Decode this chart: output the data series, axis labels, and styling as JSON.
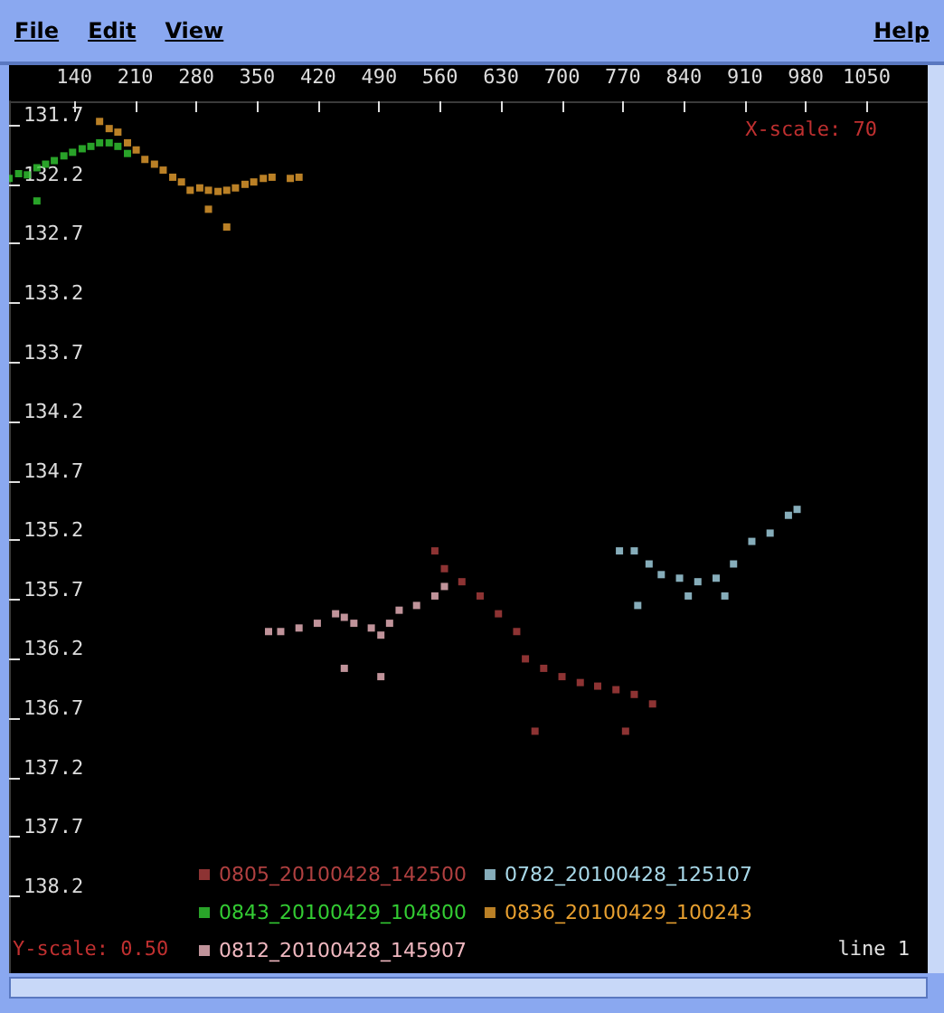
{
  "chart_data": {
    "type": "scatter",
    "annotations": [
      "File",
      "Edit",
      "View",
      "Help",
      "X-scale: 70",
      "Y-scale: 0.50",
      "line 1"
    ],
    "xlim": [
      65,
      1120
    ],
    "xticks": [
      140,
      210,
      280,
      350,
      420,
      490,
      560,
      630,
      700,
      770,
      840,
      910,
      980,
      1050
    ],
    "ylim": [
      138.85,
      131.5
    ],
    "yticks": [
      131.7,
      132.2,
      132.7,
      133.2,
      133.7,
      134.2,
      134.7,
      135.2,
      135.7,
      136.2,
      136.7,
      137.2,
      137.7,
      138.2
    ],
    "marker": "square",
    "grid": false,
    "legend": "bottom",
    "series": [
      {
        "name": "0805_20100428_142500",
        "color": "#b04040",
        "x": [
          554,
          565,
          585,
          606,
          627,
          648,
          658,
          679,
          700,
          721,
          741,
          762,
          783,
          804,
          669,
          773
        ],
        "values": [
          135.29,
          135.44,
          135.55,
          135.67,
          135.82,
          135.97,
          136.2,
          136.28,
          136.35,
          136.4,
          136.43,
          136.46,
          136.5,
          136.58,
          136.81,
          136.81
        ]
      },
      {
        "name": "0782_20100428_125107",
        "color": "#a8d8e8",
        "x": [
          766,
          783,
          800,
          814,
          835,
          856,
          877,
          897,
          918,
          939,
          960,
          970,
          787,
          845,
          887
        ],
        "values": [
          135.29,
          135.29,
          135.4,
          135.49,
          135.52,
          135.55,
          135.52,
          135.4,
          135.21,
          135.14,
          134.99,
          134.94,
          135.75,
          135.67,
          135.67
        ]
      },
      {
        "name": "0843_20100429_104800",
        "color": "#33cc33",
        "x": [
          65,
          76,
          86,
          97,
          107,
          117,
          128,
          138,
          149,
          159,
          169,
          180,
          190,
          201,
          97
        ],
        "values": [
          132.15,
          132.11,
          132.12,
          132.06,
          132.03,
          132.0,
          131.96,
          131.93,
          131.9,
          131.88,
          131.85,
          131.85,
          131.88,
          131.94,
          132.34
        ]
      },
      {
        "name": "0836_20100429_100243",
        "color": "#e8a030",
        "x": [
          169,
          180,
          190,
          201,
          211,
          221,
          232,
          242,
          253,
          263,
          273,
          284,
          294,
          305,
          315,
          325,
          336,
          346,
          357,
          367,
          388,
          398,
          294,
          315
        ],
        "values": [
          131.67,
          131.73,
          131.76,
          131.85,
          131.91,
          131.99,
          132.03,
          132.08,
          132.14,
          132.18,
          132.25,
          132.23,
          132.25,
          132.26,
          132.25,
          132.23,
          132.2,
          132.18,
          132.15,
          132.14,
          132.15,
          132.14,
          132.41,
          132.56
        ]
      },
      {
        "name": "0812_20100428_145907",
        "color": "#f0b8c0",
        "x": [
          363,
          377,
          398,
          419,
          440,
          450,
          461,
          481,
          492,
          502,
          513,
          533,
          554,
          565,
          450,
          492
        ],
        "values": [
          135.97,
          135.97,
          135.94,
          135.9,
          135.82,
          135.85,
          135.9,
          135.94,
          136.0,
          135.9,
          135.79,
          135.75,
          135.67,
          135.59,
          136.28,
          136.35
        ]
      }
    ]
  }
}
